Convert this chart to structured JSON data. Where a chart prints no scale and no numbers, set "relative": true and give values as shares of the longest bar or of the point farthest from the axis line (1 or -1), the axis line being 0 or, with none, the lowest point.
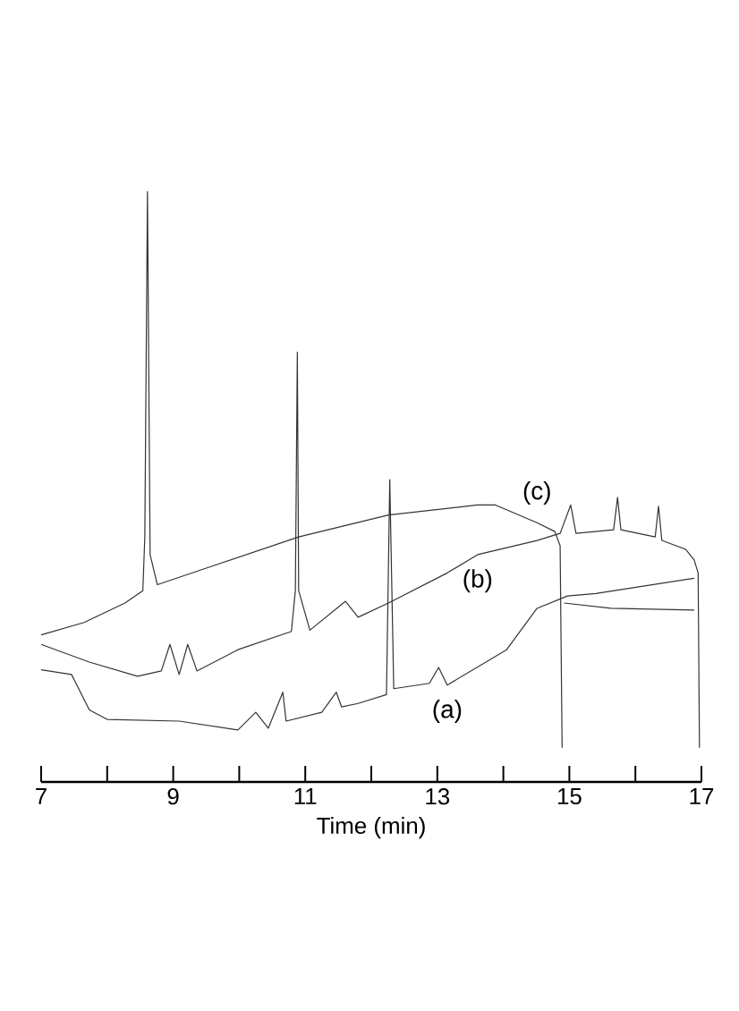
{
  "chart_data": {
    "type": "line",
    "relative": true,
    "xlabel": "Time (min)",
    "xlim": [
      7,
      17
    ],
    "xticks": [
      7,
      {
        "value": 8,
        "label": null
      },
      9,
      {
        "value": 10,
        "label": null
      },
      11,
      {
        "value": 12,
        "label": null
      },
      13,
      {
        "value": 14,
        "label": null
      },
      15,
      {
        "value": 16,
        "label": null
      },
      17
    ],
    "series": [
      {
        "name": "(c)",
        "color": "#333333",
        "x": [
          7.0,
          7.65,
          8.27,
          8.54,
          8.57,
          8.61,
          8.65,
          8.76,
          9.55,
          10.9,
          12.26,
          13.61,
          13.88,
          14.51,
          14.78,
          14.86,
          14.89,
          14.9,
          14.92,
          15.63,
          16.89
        ],
        "values": [
          0.249,
          0.27,
          0.303,
          0.324,
          0.415,
          1.0,
          0.385,
          0.334,
          0.364,
          0.415,
          0.452,
          0.469,
          0.469,
          0.439,
          0.424,
          0.4,
          0.058,
          null,
          0.303,
          0.294,
          0.291
        ]
      },
      {
        "name": "(b)",
        "color": "#333333",
        "x": [
          7.0,
          7.73,
          8.46,
          8.82,
          8.95,
          9.09,
          9.22,
          9.36,
          9.98,
          10.79,
          10.85,
          10.88,
          10.9,
          11.07,
          11.61,
          11.8,
          12.26,
          13.15,
          13.61,
          14.51,
          14.86,
          15.02,
          15.1,
          15.67,
          15.73,
          15.78,
          16.3,
          16.35,
          16.4,
          16.76,
          16.89,
          16.95,
          16.97
        ],
        "values": [
          0.233,
          0.203,
          0.179,
          0.188,
          0.233,
          0.182,
          0.233,
          0.188,
          0.224,
          0.255,
          0.324,
          0.728,
          0.324,
          0.257,
          0.306,
          0.279,
          0.303,
          0.354,
          0.385,
          0.409,
          0.421,
          0.469,
          0.421,
          0.427,
          0.482,
          0.427,
          0.415,
          0.467,
          0.409,
          0.394,
          0.376,
          0.354,
          0.058
        ]
      },
      {
        "name": "(a)",
        "color": "#333333",
        "x": [
          7.0,
          7.46,
          7.73,
          8.0,
          9.09,
          9.98,
          10.25,
          10.44,
          10.66,
          10.71,
          11.25,
          11.47,
          11.55,
          11.8,
          12.23,
          12.28,
          12.34,
          12.88,
          13.02,
          13.15,
          14.05,
          14.51,
          14.97,
          15.4,
          16.89
        ],
        "values": [
          0.19,
          0.182,
          0.122,
          0.106,
          0.103,
          0.088,
          0.118,
          0.091,
          0.152,
          0.103,
          0.118,
          0.152,
          0.127,
          0.133,
          0.148,
          0.512,
          0.158,
          0.167,
          0.194,
          0.164,
          0.224,
          0.294,
          0.315,
          0.319,
          0.345
        ]
      }
    ]
  }
}
